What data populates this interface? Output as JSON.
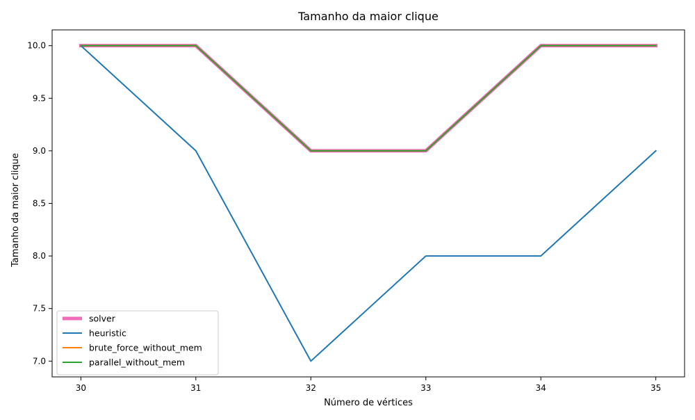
{
  "chart_data": {
    "type": "line",
    "title": "Tamanho da maior clique",
    "xlabel": "Número de vértices",
    "ylabel": "Tamanho da maior clique",
    "x": [
      30,
      31,
      32,
      33,
      34,
      35
    ],
    "xlim": [
      29.75,
      35.25
    ],
    "ylim": [
      6.85,
      10.15
    ],
    "x_ticks": [
      30,
      31,
      32,
      33,
      34,
      35
    ],
    "y_ticks": [
      7.0,
      7.5,
      8.0,
      8.5,
      9.0,
      9.5,
      10.0
    ],
    "y_tick_labels": [
      "7.0",
      "7.5",
      "8.0",
      "8.5",
      "9.0",
      "9.5",
      "10.0"
    ],
    "grid": false,
    "legend_position": "lower-left",
    "series": [
      {
        "name": "solver",
        "values": [
          10,
          10,
          9,
          9,
          10,
          10
        ],
        "color": "#f06cb9",
        "width": "thick"
      },
      {
        "name": "heuristic",
        "values": [
          10,
          9,
          7,
          8,
          8,
          9
        ],
        "color": "#1f77b4",
        "width": "normal"
      },
      {
        "name": "brute_force_without_mem",
        "values": [
          10,
          10,
          9,
          9,
          10,
          10
        ],
        "color": "#ff7f0e",
        "width": "normal"
      },
      {
        "name": "parallel_without_mem",
        "values": [
          10,
          10,
          9,
          9,
          10,
          10
        ],
        "color": "#2ca02c",
        "width": "normal"
      }
    ]
  }
}
